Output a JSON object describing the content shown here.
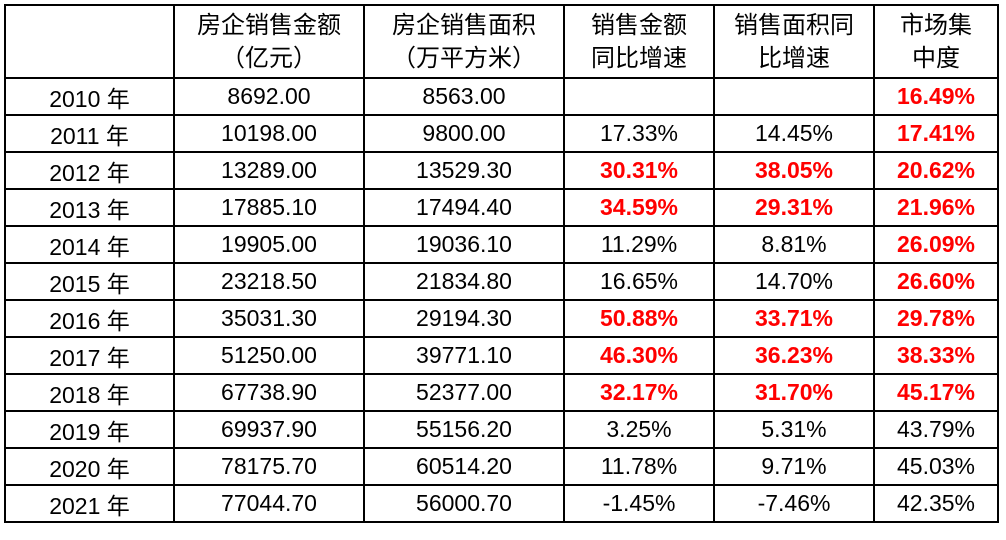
{
  "colors": {
    "background": "#FFFFFF",
    "text": "#000000",
    "border": "#000000",
    "highlight_red": "#FF0000"
  },
  "table": {
    "header": [
      {
        "line1": "",
        "line2": ""
      },
      {
        "line1": "房企销售金额",
        "line2": "（亿元）"
      },
      {
        "line1": "房企销售面积",
        "line2": "（万平方米）"
      },
      {
        "line1": "销售金额",
        "line2": "同比增速"
      },
      {
        "line1": "销售面积同",
        "line2": "比增速"
      },
      {
        "line1": "市场集",
        "line2": "中度"
      }
    ],
    "rows": [
      {
        "cells": [
          {
            "text": "2010 年",
            "red": false
          },
          {
            "text": "8692.00",
            "red": false
          },
          {
            "text": "8563.00",
            "red": false
          },
          {
            "text": "",
            "red": false
          },
          {
            "text": "",
            "red": false
          },
          {
            "text": "16.49%",
            "red": true
          }
        ]
      },
      {
        "cells": [
          {
            "text": "2011 年",
            "red": false
          },
          {
            "text": "10198.00",
            "red": false
          },
          {
            "text": "9800.00",
            "red": false
          },
          {
            "text": "17.33%",
            "red": false
          },
          {
            "text": "14.45%",
            "red": false
          },
          {
            "text": "17.41%",
            "red": true
          }
        ]
      },
      {
        "cells": [
          {
            "text": "2012 年",
            "red": false
          },
          {
            "text": "13289.00",
            "red": false
          },
          {
            "text": "13529.30",
            "red": false
          },
          {
            "text": "30.31%",
            "red": true
          },
          {
            "text": "38.05%",
            "red": true
          },
          {
            "text": "20.62%",
            "red": true
          }
        ]
      },
      {
        "cells": [
          {
            "text": "2013 年",
            "red": false
          },
          {
            "text": "17885.10",
            "red": false
          },
          {
            "text": "17494.40",
            "red": false
          },
          {
            "text": "34.59%",
            "red": true
          },
          {
            "text": "29.31%",
            "red": true
          },
          {
            "text": "21.96%",
            "red": true
          }
        ]
      },
      {
        "cells": [
          {
            "text": "2014 年",
            "red": false
          },
          {
            "text": "19905.00",
            "red": false
          },
          {
            "text": "19036.10",
            "red": false
          },
          {
            "text": "11.29%",
            "red": false
          },
          {
            "text": "8.81%",
            "red": false
          },
          {
            "text": "26.09%",
            "red": true
          }
        ]
      },
      {
        "cells": [
          {
            "text": "2015 年",
            "red": false
          },
          {
            "text": "23218.50",
            "red": false
          },
          {
            "text": "21834.80",
            "red": false
          },
          {
            "text": "16.65%",
            "red": false
          },
          {
            "text": "14.70%",
            "red": false
          },
          {
            "text": "26.60%",
            "red": true
          }
        ]
      },
      {
        "cells": [
          {
            "text": "2016 年",
            "red": false
          },
          {
            "text": "35031.30",
            "red": false
          },
          {
            "text": "29194.30",
            "red": false
          },
          {
            "text": "50.88%",
            "red": true
          },
          {
            "text": "33.71%",
            "red": true
          },
          {
            "text": "29.78%",
            "red": true
          }
        ]
      },
      {
        "cells": [
          {
            "text": "2017 年",
            "red": false
          },
          {
            "text": "51250.00",
            "red": false
          },
          {
            "text": "39771.10",
            "red": false
          },
          {
            "text": "46.30%",
            "red": true
          },
          {
            "text": "36.23%",
            "red": true
          },
          {
            "text": "38.33%",
            "red": true
          }
        ]
      },
      {
        "cells": [
          {
            "text": "2018 年",
            "red": false
          },
          {
            "text": "67738.90",
            "red": false
          },
          {
            "text": "52377.00",
            "red": false
          },
          {
            "text": "32.17%",
            "red": true
          },
          {
            "text": "31.70%",
            "red": true
          },
          {
            "text": "45.17%",
            "red": true
          }
        ]
      },
      {
        "cells": [
          {
            "text": "2019 年",
            "red": false
          },
          {
            "text": "69937.90",
            "red": false
          },
          {
            "text": "55156.20",
            "red": false
          },
          {
            "text": "3.25%",
            "red": false
          },
          {
            "text": "5.31%",
            "red": false
          },
          {
            "text": "43.79%",
            "red": false
          }
        ]
      },
      {
        "cells": [
          {
            "text": "2020 年",
            "red": false
          },
          {
            "text": "78175.70",
            "red": false
          },
          {
            "text": "60514.20",
            "red": false
          },
          {
            "text": "11.78%",
            "red": false
          },
          {
            "text": "9.71%",
            "red": false
          },
          {
            "text": "45.03%",
            "red": false
          }
        ]
      },
      {
        "cells": [
          {
            "text": "2021 年",
            "red": false
          },
          {
            "text": "77044.70",
            "red": false
          },
          {
            "text": "56000.70",
            "red": false
          },
          {
            "text": "-1.45%",
            "red": false
          },
          {
            "text": "-7.46%",
            "red": false
          },
          {
            "text": "42.35%",
            "red": false
          }
        ]
      }
    ]
  },
  "chart_data": {
    "type": "table",
    "title": "",
    "columns": [
      "",
      "房企销售金额（亿元）",
      "房企销售面积（万平方米）",
      "销售金额同比增速",
      "销售面积同比增速",
      "市场集中度"
    ],
    "rows": [
      [
        "2010 年",
        8692.0,
        8563.0,
        null,
        null,
        "16.49%"
      ],
      [
        "2011 年",
        10198.0,
        9800.0,
        "17.33%",
        "14.45%",
        "17.41%"
      ],
      [
        "2012 年",
        13289.0,
        13529.3,
        "30.31%",
        "38.05%",
        "20.62%"
      ],
      [
        "2013 年",
        17885.1,
        17494.4,
        "34.59%",
        "29.31%",
        "21.96%"
      ],
      [
        "2014 年",
        19905.0,
        19036.1,
        "11.29%",
        "8.81%",
        "26.09%"
      ],
      [
        "2015 年",
        23218.5,
        21834.8,
        "16.65%",
        "14.70%",
        "26.60%"
      ],
      [
        "2016 年",
        35031.3,
        29194.3,
        "50.88%",
        "33.71%",
        "29.78%"
      ],
      [
        "2017 年",
        51250.0,
        39771.1,
        "46.30%",
        "36.23%",
        "38.33%"
      ],
      [
        "2018 年",
        67738.9,
        52377.0,
        "32.17%",
        "31.70%",
        "45.17%"
      ],
      [
        "2019 年",
        69937.9,
        55156.2,
        "3.25%",
        "5.31%",
        "43.79%"
      ],
      [
        "2020 年",
        78175.7,
        60514.2,
        "11.78%",
        "9.71%",
        "45.03%"
      ],
      [
        "2021 年",
        77044.7,
        56000.7,
        "-1.45%",
        "-7.46%",
        "42.35%"
      ]
    ],
    "layout_hints": {
      "red_bold_cells": "市场集中度 column rows 2010-2018; 销售金额同比增速 and 销售面积同比增速 columns rows 2012, 2013, 2016, 2017, 2018",
      "grid": true,
      "cell_alignment": "center"
    }
  }
}
